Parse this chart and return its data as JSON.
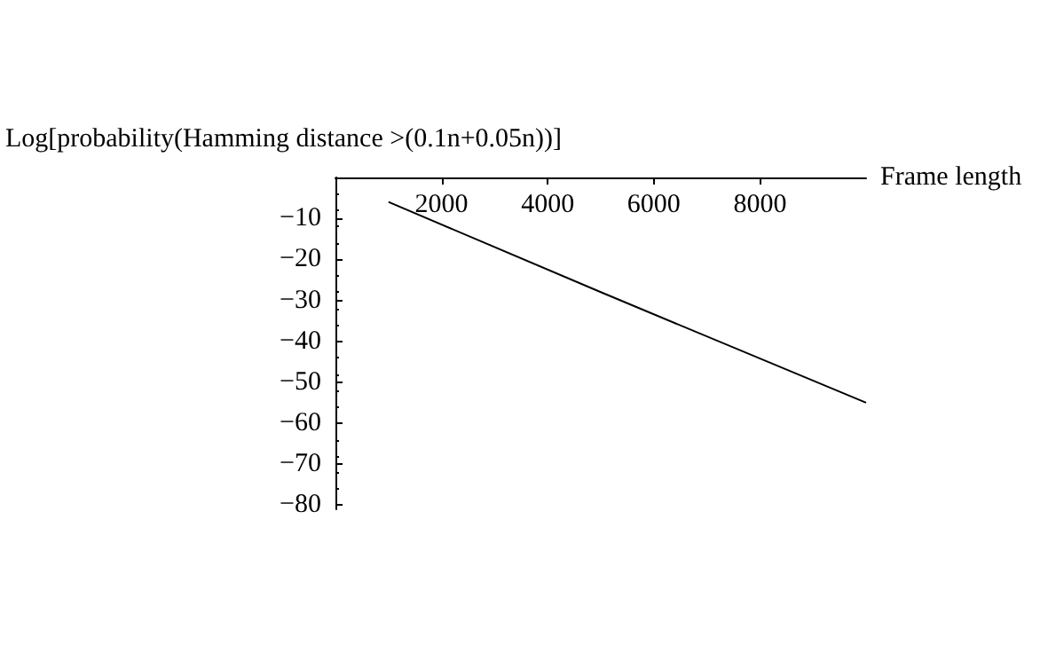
{
  "chart_data": {
    "type": "line",
    "ylabel": "Log[probability(Hamming distance >(0.1n+0.05n))]",
    "xlabel": "Frame length",
    "x": [
      1000,
      5000,
      10000
    ],
    "series": [
      {
        "color": "#000000",
        "values": [
          -6,
          -28,
          -55
        ]
      }
    ],
    "xlim": [
      0,
      10000
    ],
    "xticks": [
      2000,
      4000,
      6000,
      8000
    ],
    "ylim": [
      -81,
      0
    ],
    "yticks": [
      -10,
      -20,
      -30,
      -40,
      -50,
      -60,
      -70,
      -80
    ],
    "grid": false,
    "marker": "none",
    "line_style": "solid"
  }
}
